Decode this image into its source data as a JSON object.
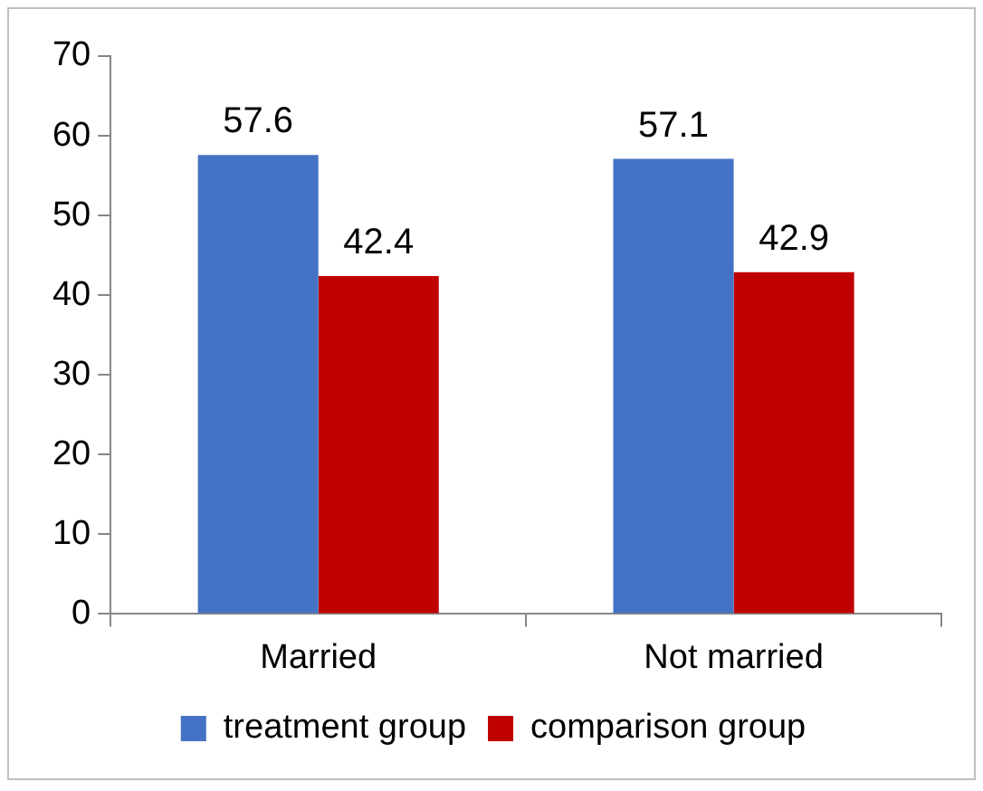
{
  "chart_data": {
    "type": "bar",
    "categories": [
      "Married",
      "Not married"
    ],
    "series": [
      {
        "name": "treatment group",
        "color": "#4472c4",
        "values": [
          57.6,
          57.1
        ]
      },
      {
        "name": "comparison group",
        "color": "#c00000",
        "values": [
          42.4,
          42.9
        ]
      }
    ],
    "ylim": [
      0,
      70
    ],
    "yticks": [
      0,
      10,
      20,
      30,
      40,
      50,
      60,
      70
    ],
    "grid": false,
    "legend": "bottom",
    "data_labels": true
  }
}
